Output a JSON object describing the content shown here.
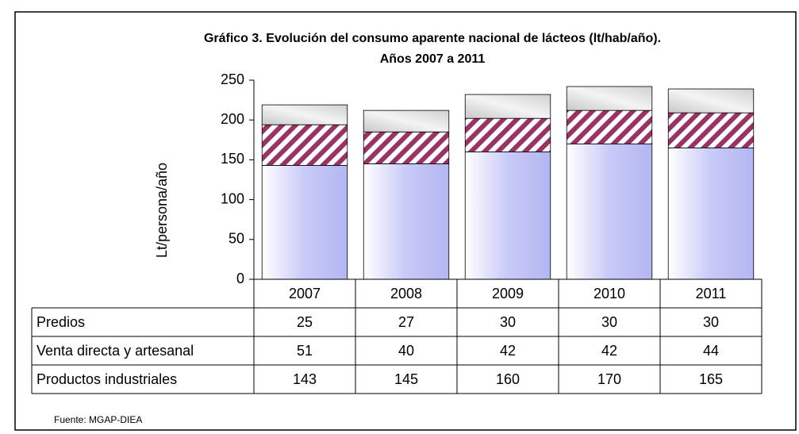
{
  "chart_data": {
    "type": "bar",
    "stacked": true,
    "title": "Gráfico 3.  Evolución del consumo aparente nacional de lácteos (lt/hab/año).",
    "subtitle": "Años 2007 a 2011",
    "y_label": "Lt/persona/año",
    "source": "Fuente: MGAP-DIEA",
    "categories": [
      "2007",
      "2008",
      "2009",
      "2010",
      "2011"
    ],
    "series": [
      {
        "name": "Predios",
        "color": "#d9d9d9",
        "values": [
          25,
          27,
          30,
          30,
          30
        ]
      },
      {
        "name": "Venta directa y artesanal",
        "color": "#993366",
        "values": [
          51,
          40,
          42,
          42,
          44
        ]
      },
      {
        "name": "Productos industriales",
        "color": "#c8caf8",
        "values": [
          143,
          145,
          160,
          170,
          165
        ]
      }
    ],
    "ylim": [
      0,
      250
    ],
    "yticks": [
      0,
      50,
      100,
      150,
      200,
      250
    ],
    "grid": false
  }
}
